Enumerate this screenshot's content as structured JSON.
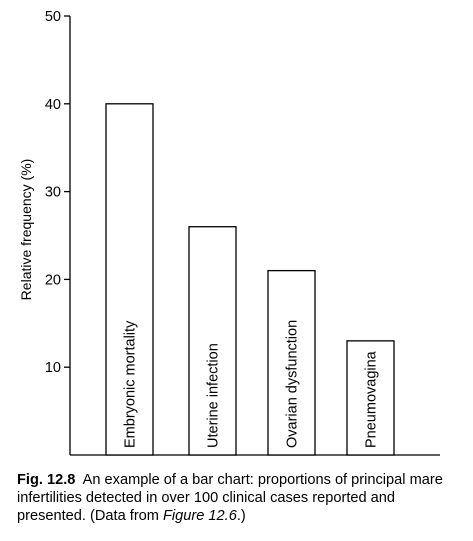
{
  "chart_data": {
    "type": "bar",
    "categories": [
      "Embryonic mortality",
      "Uterine infection",
      "Ovarian dysfunction",
      "Pneumovagina"
    ],
    "values": [
      40,
      26,
      21,
      13
    ],
    "title": "",
    "xlabel": "",
    "ylabel": "Relative frequency (%)",
    "ylim": [
      0,
      50
    ],
    "yticks": [
      10,
      20,
      30,
      40,
      50
    ],
    "ytick_labels": [
      "10",
      "20",
      "30",
      "40",
      "50"
    ],
    "grid": false,
    "category_labels_inside_bars": true,
    "bar_fill": "#ffffff",
    "bar_stroke": "#000000"
  },
  "caption": {
    "label": "Fig. 12.8",
    "text": "An example of a bar chart: proportions of principal mare infertilities detected in over 100 clinical cases reported and presented. (Data from ",
    "figure_ref": "Figure 12.6",
    "closing": ".)"
  }
}
